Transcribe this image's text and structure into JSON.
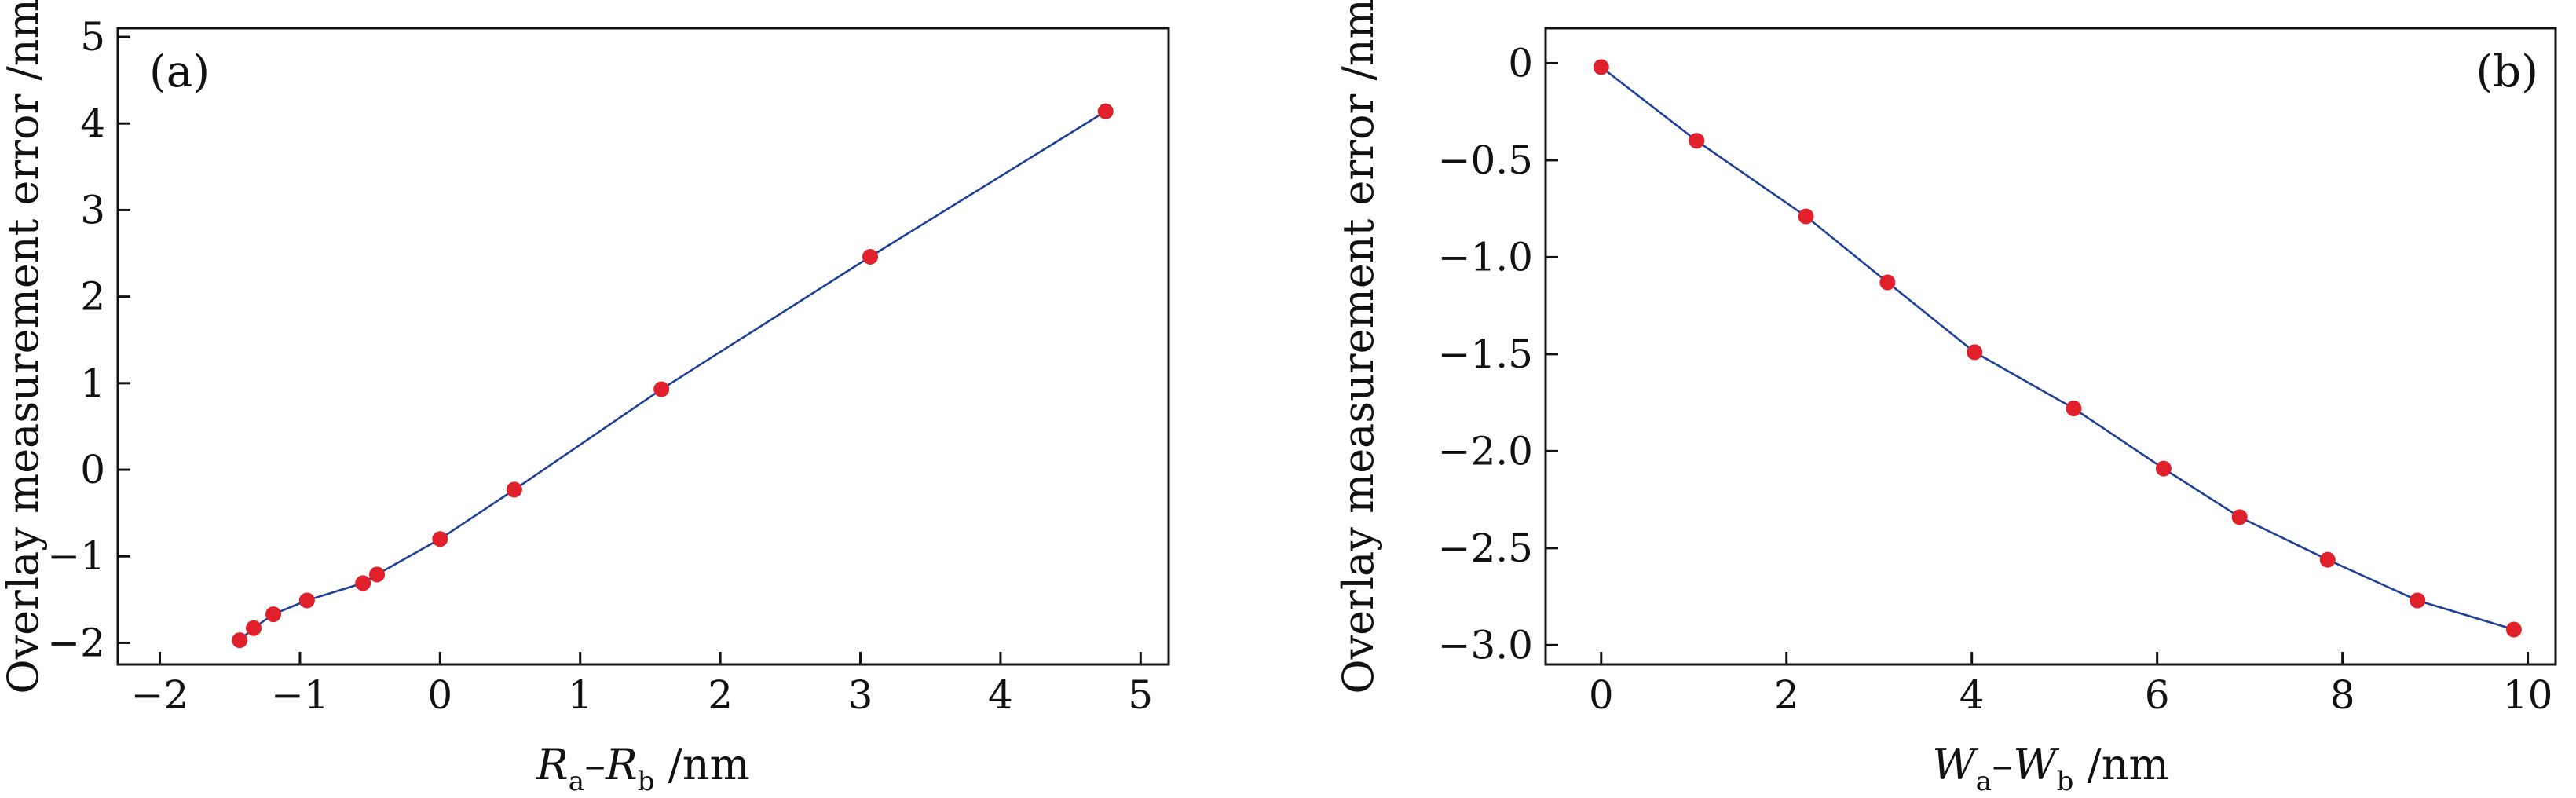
{
  "colors": {
    "line": "#1f3f99",
    "marker": "#e0202a",
    "axis": "#111111"
  },
  "chart_data": [
    {
      "type": "line",
      "panel_label": "(a)",
      "xlabel": {
        "main": "R",
        "sub1": "a",
        "dash": "–",
        "main2": "R",
        "sub2": "b",
        "unit": " /nm"
      },
      "ylabel": "Overlay measurement error /nm",
      "xlim": [
        -2.3,
        5.2
      ],
      "ylim": [
        -2.25,
        5.1
      ],
      "xticks": [
        -2,
        -1,
        0,
        1,
        2,
        3,
        4,
        5
      ],
      "xtick_labels": [
        "−2",
        "−1",
        "0",
        "1",
        "2",
        "3",
        "4",
        "5"
      ],
      "yticks": [
        -2,
        -1,
        0,
        1,
        2,
        3,
        4,
        5
      ],
      "ytick_labels": [
        "−2",
        "−1",
        "0",
        "1",
        "2",
        "3",
        "4",
        "5"
      ],
      "grid": false,
      "legend": "none",
      "series": [
        {
          "marker": "circle",
          "x": [
            -1.43,
            -1.33,
            -1.19,
            -0.95,
            -0.55,
            -0.45,
            0.0,
            0.53,
            1.58,
            3.07,
            4.75
          ],
          "y": [
            -1.97,
            -1.83,
            -1.67,
            -1.51,
            -1.31,
            -1.21,
            -0.8,
            -0.23,
            0.93,
            2.46,
            4.14
          ]
        }
      ]
    },
    {
      "type": "line",
      "panel_label": "(b)",
      "xlabel": {
        "main": "W",
        "sub1": "a",
        "dash": "–",
        "main2": "W",
        "sub2": "b",
        "unit": " /nm"
      },
      "ylabel": "Overlay measurement error /nm",
      "xlim": [
        -0.6,
        10.3
      ],
      "ylim": [
        -3.1,
        0.18
      ],
      "xticks": [
        0,
        2,
        4,
        6,
        8,
        10
      ],
      "xtick_labels": [
        "0",
        "2",
        "4",
        "6",
        "8",
        "10"
      ],
      "yticks": [
        0,
        -0.5,
        -1.0,
        -1.5,
        -2.0,
        -2.5,
        -3.0
      ],
      "ytick_labels": [
        "0",
        "−0.5",
        "−1.0",
        "−1.5",
        "−2.0",
        "−2.5",
        "−3.0"
      ],
      "grid": false,
      "legend": "none",
      "series": [
        {
          "marker": "circle",
          "x": [
            0.0,
            1.03,
            2.21,
            3.09,
            4.03,
            5.1,
            6.07,
            6.89,
            7.84,
            8.81,
            9.85
          ],
          "y": [
            -0.02,
            -0.4,
            -0.79,
            -1.13,
            -1.49,
            -1.78,
            -2.09,
            -2.34,
            -2.56,
            -2.77,
            -2.92
          ]
        }
      ]
    }
  ]
}
